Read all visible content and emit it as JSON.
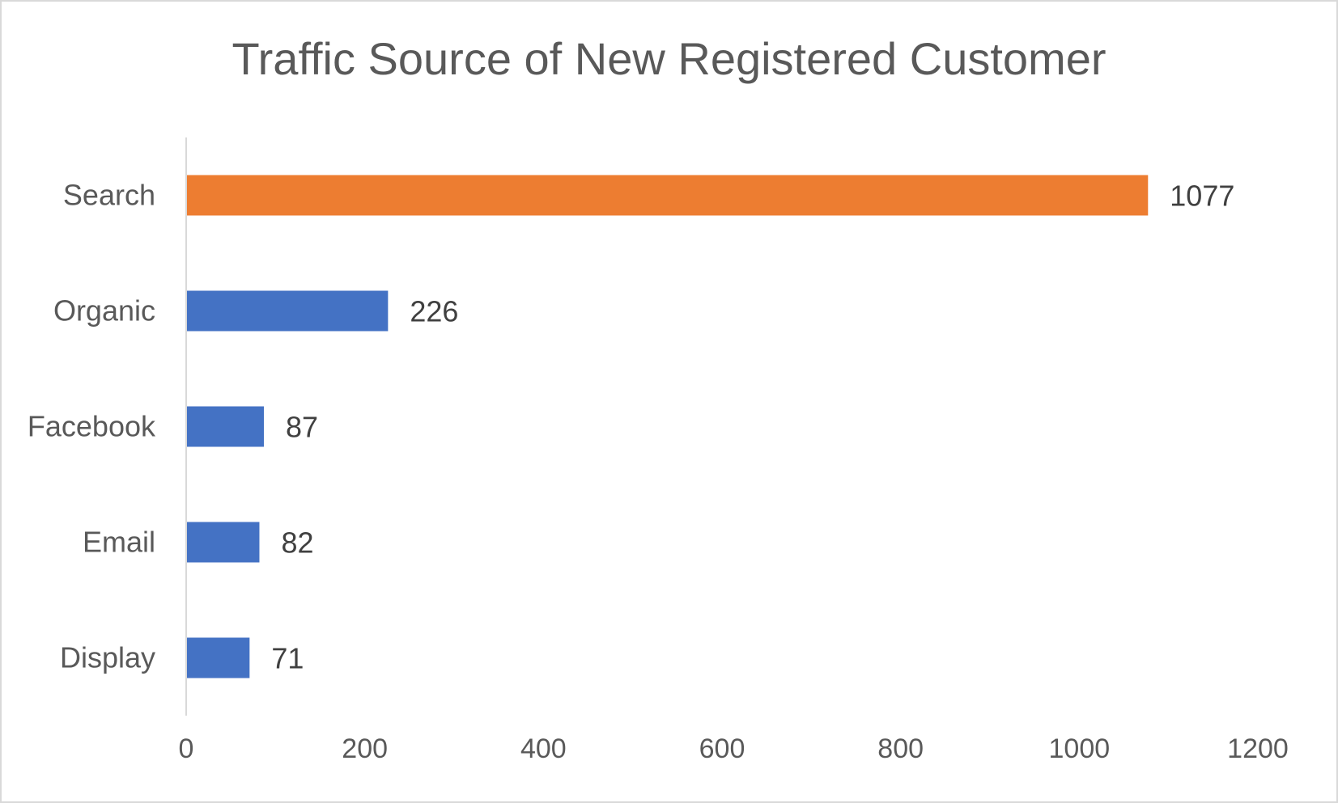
{
  "chart_data": {
    "type": "bar",
    "orientation": "horizontal",
    "title": "Traffic Source of New Registered Customer",
    "categories": [
      "Search",
      "Organic",
      "Facebook",
      "Email",
      "Display"
    ],
    "values": [
      1077,
      226,
      87,
      82,
      71
    ],
    "data_labels": [
      "1077",
      "226",
      "87",
      "82",
      "71"
    ],
    "bar_colors": [
      "#ED7D31",
      "#4472C4",
      "#4472C4",
      "#4472C4",
      "#4472C4"
    ],
    "xlim": [
      0,
      1200
    ],
    "x_ticks": [
      "0",
      "200",
      "400",
      "600",
      "800",
      "1000",
      "1200"
    ],
    "xlabel": "",
    "ylabel": "",
    "grid": false,
    "legend": "none"
  }
}
